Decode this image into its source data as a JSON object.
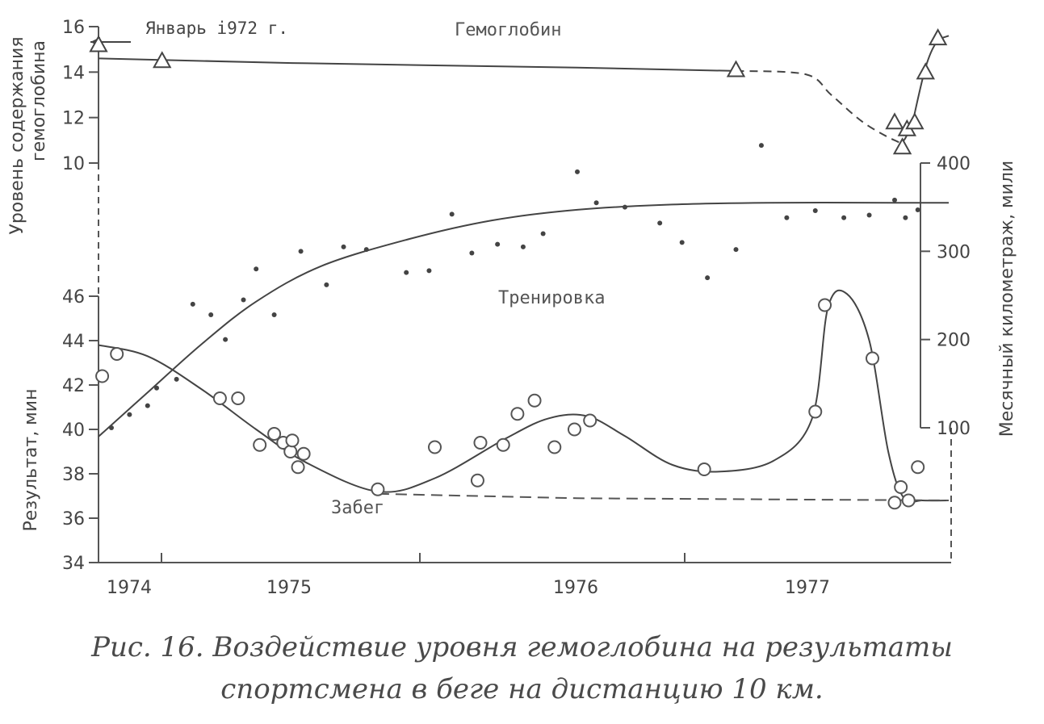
{
  "caption": {
    "line1": "Рис. 16. Воздействие уровня гемоглобина на результаты",
    "line2": "спортсмена в беге на дистанцию 10 км."
  },
  "chart_data": {
    "type": "scatter",
    "x_tick_labels": [
      "1974",
      "1975",
      "1976",
      "1977"
    ],
    "annotation": "Январь i972 г.",
    "axes": {
      "hemoglobin": {
        "label_lines": [
          "Уровень содержания",
          "гемоглобина"
        ],
        "ticks": [
          "16",
          "14",
          "12",
          "10"
        ],
        "ylim": [
          10,
          16
        ]
      },
      "result": {
        "label": "Результат, мин",
        "ticks": [
          "46",
          "44",
          "42",
          "40",
          "38",
          "36",
          "34"
        ],
        "ylim": [
          34,
          46
        ]
      },
      "mileage": {
        "label": "Месячный километраж, мили",
        "ticks": [
          "400",
          "300",
          "200",
          "100"
        ],
        "ylim": [
          100,
          400
        ]
      }
    },
    "series": [
      {
        "name": "Гемоглобин",
        "marker": "triangle",
        "axis": "hemoglobin",
        "points": [
          {
            "x": 1973.93,
            "y": 15.2
          },
          {
            "x": 1974.28,
            "y": 14.5
          },
          {
            "x": 1976.5,
            "y": 14.1
          },
          {
            "x": 1977.0,
            "y": 11.8
          },
          {
            "x": 1977.05,
            "y": 10.7
          },
          {
            "x": 1977.08,
            "y": 11.5
          },
          {
            "x": 1977.13,
            "y": 11.8
          },
          {
            "x": 1977.2,
            "y": 14.0
          },
          {
            "x": 1977.28,
            "y": 15.5
          }
        ],
        "trend": [
          {
            "x": 1973.93,
            "y": 14.6
          },
          {
            "x": 1975.0,
            "y": 14.4
          },
          {
            "x": 1976.0,
            "y": 14.2
          },
          {
            "x": 1976.5,
            "y": 14.05
          },
          {
            "x": 1976.72,
            "y": 13.9
          },
          {
            "x": 1976.8,
            "y": 13.0
          },
          {
            "x": 1976.9,
            "y": 11.8
          },
          {
            "x": 1977.0,
            "y": 11.0
          },
          {
            "x": 1977.06,
            "y": 11.0
          },
          {
            "x": 1977.12,
            "y": 11.9
          },
          {
            "x": 1977.2,
            "y": 14.2
          },
          {
            "x": 1977.27,
            "y": 15.3
          },
          {
            "x": 1977.35,
            "y": 15.6
          }
        ]
      },
      {
        "name": "Тренировка",
        "marker": "dot",
        "axis": "mileage",
        "points": [
          {
            "x": 1974.0,
            "y": 100
          },
          {
            "x": 1974.1,
            "y": 115
          },
          {
            "x": 1974.2,
            "y": 125
          },
          {
            "x": 1974.25,
            "y": 145
          },
          {
            "x": 1974.36,
            "y": 155
          },
          {
            "x": 1974.45,
            "y": 240
          },
          {
            "x": 1974.55,
            "y": 228
          },
          {
            "x": 1974.63,
            "y": 200
          },
          {
            "x": 1974.73,
            "y": 245
          },
          {
            "x": 1974.8,
            "y": 280
          },
          {
            "x": 1974.9,
            "y": 228
          },
          {
            "x": 1975.03,
            "y": 300
          },
          {
            "x": 1975.12,
            "y": 262
          },
          {
            "x": 1975.18,
            "y": 305
          },
          {
            "x": 1975.26,
            "y": 302
          },
          {
            "x": 1975.4,
            "y": 276
          },
          {
            "x": 1975.48,
            "y": 278
          },
          {
            "x": 1975.56,
            "y": 342
          },
          {
            "x": 1975.63,
            "y": 298
          },
          {
            "x": 1975.72,
            "y": 308
          },
          {
            "x": 1975.81,
            "y": 305
          },
          {
            "x": 1975.88,
            "y": 320
          },
          {
            "x": 1976.0,
            "y": 390
          },
          {
            "x": 1976.06,
            "y": 355
          },
          {
            "x": 1976.15,
            "y": 350
          },
          {
            "x": 1976.26,
            "y": 332
          },
          {
            "x": 1976.33,
            "y": 310
          },
          {
            "x": 1976.41,
            "y": 270
          },
          {
            "x": 1976.5,
            "y": 302
          },
          {
            "x": 1976.58,
            "y": 420
          },
          {
            "x": 1976.66,
            "y": 338
          },
          {
            "x": 1976.75,
            "y": 346
          },
          {
            "x": 1976.84,
            "y": 338
          },
          {
            "x": 1976.92,
            "y": 341
          },
          {
            "x": 1977.0,
            "y": 358
          },
          {
            "x": 1977.07,
            "y": 338
          },
          {
            "x": 1977.15,
            "y": 347
          }
        ],
        "trend": [
          {
            "x": 1973.93,
            "y": 90
          },
          {
            "x": 1974.2,
            "y": 140
          },
          {
            "x": 1974.5,
            "y": 195
          },
          {
            "x": 1974.8,
            "y": 243
          },
          {
            "x": 1975.1,
            "y": 283
          },
          {
            "x": 1975.4,
            "y": 313
          },
          {
            "x": 1975.7,
            "y": 335
          },
          {
            "x": 1976.0,
            "y": 347
          },
          {
            "x": 1976.3,
            "y": 353
          },
          {
            "x": 1976.6,
            "y": 355
          },
          {
            "x": 1977.0,
            "y": 355
          },
          {
            "x": 1977.35,
            "y": 355
          }
        ]
      },
      {
        "name": "Забег",
        "marker": "circle",
        "axis": "result",
        "points": [
          {
            "x": 1973.95,
            "y": 42.4
          },
          {
            "x": 1974.03,
            "y": 43.4
          },
          {
            "x": 1974.6,
            "y": 41.4
          },
          {
            "x": 1974.7,
            "y": 41.4
          },
          {
            "x": 1974.82,
            "y": 39.3
          },
          {
            "x": 1974.9,
            "y": 39.8
          },
          {
            "x": 1974.95,
            "y": 39.4
          },
          {
            "x": 1974.99,
            "y": 39.0
          },
          {
            "x": 1975.0,
            "y": 39.5
          },
          {
            "x": 1975.02,
            "y": 38.3
          },
          {
            "x": 1975.04,
            "y": 38.9
          },
          {
            "x": 1975.3,
            "y": 37.3
          },
          {
            "x": 1975.5,
            "y": 39.2
          },
          {
            "x": 1975.65,
            "y": 37.7
          },
          {
            "x": 1975.66,
            "y": 39.4
          },
          {
            "x": 1975.74,
            "y": 39.3
          },
          {
            "x": 1975.79,
            "y": 40.7
          },
          {
            "x": 1975.85,
            "y": 41.3
          },
          {
            "x": 1975.92,
            "y": 39.2
          },
          {
            "x": 1975.99,
            "y": 40.0
          },
          {
            "x": 1976.04,
            "y": 40.4
          },
          {
            "x": 1976.4,
            "y": 38.2
          },
          {
            "x": 1976.75,
            "y": 40.8
          },
          {
            "x": 1976.78,
            "y": 45.6
          },
          {
            "x": 1976.93,
            "y": 43.2
          },
          {
            "x": 1977.0,
            "y": 36.7
          },
          {
            "x": 1977.04,
            "y": 37.4
          },
          {
            "x": 1977.09,
            "y": 36.8
          },
          {
            "x": 1977.15,
            "y": 38.3
          }
        ],
        "trend": [
          {
            "x": 1973.93,
            "y": 43.8
          },
          {
            "x": 1974.2,
            "y": 43.3
          },
          {
            "x": 1974.5,
            "y": 41.8
          },
          {
            "x": 1974.8,
            "y": 40.0
          },
          {
            "x": 1975.05,
            "y": 38.5
          },
          {
            "x": 1975.3,
            "y": 37.2
          },
          {
            "x": 1975.5,
            "y": 37.8
          },
          {
            "x": 1975.75,
            "y": 39.6
          },
          {
            "x": 1975.9,
            "y": 40.5
          },
          {
            "x": 1976.03,
            "y": 40.6
          },
          {
            "x": 1976.15,
            "y": 39.7
          },
          {
            "x": 1976.3,
            "y": 38.4
          },
          {
            "x": 1976.45,
            "y": 38.1
          },
          {
            "x": 1976.62,
            "y": 38.6
          },
          {
            "x": 1976.74,
            "y": 40.5
          },
          {
            "x": 1976.79,
            "y": 45.5
          },
          {
            "x": 1976.85,
            "y": 46.1
          },
          {
            "x": 1976.92,
            "y": 44.0
          },
          {
            "x": 1976.98,
            "y": 39.0
          },
          {
            "x": 1977.06,
            "y": 36.9
          },
          {
            "x": 1977.18,
            "y": 36.8
          },
          {
            "x": 1977.35,
            "y": 36.8
          }
        ],
        "baseline": [
          {
            "x": 1975.3,
            "y": 37.1
          },
          {
            "x": 1976.0,
            "y": 36.9
          },
          {
            "x": 1977.35,
            "y": 36.8
          }
        ]
      }
    ],
    "grid": false
  }
}
